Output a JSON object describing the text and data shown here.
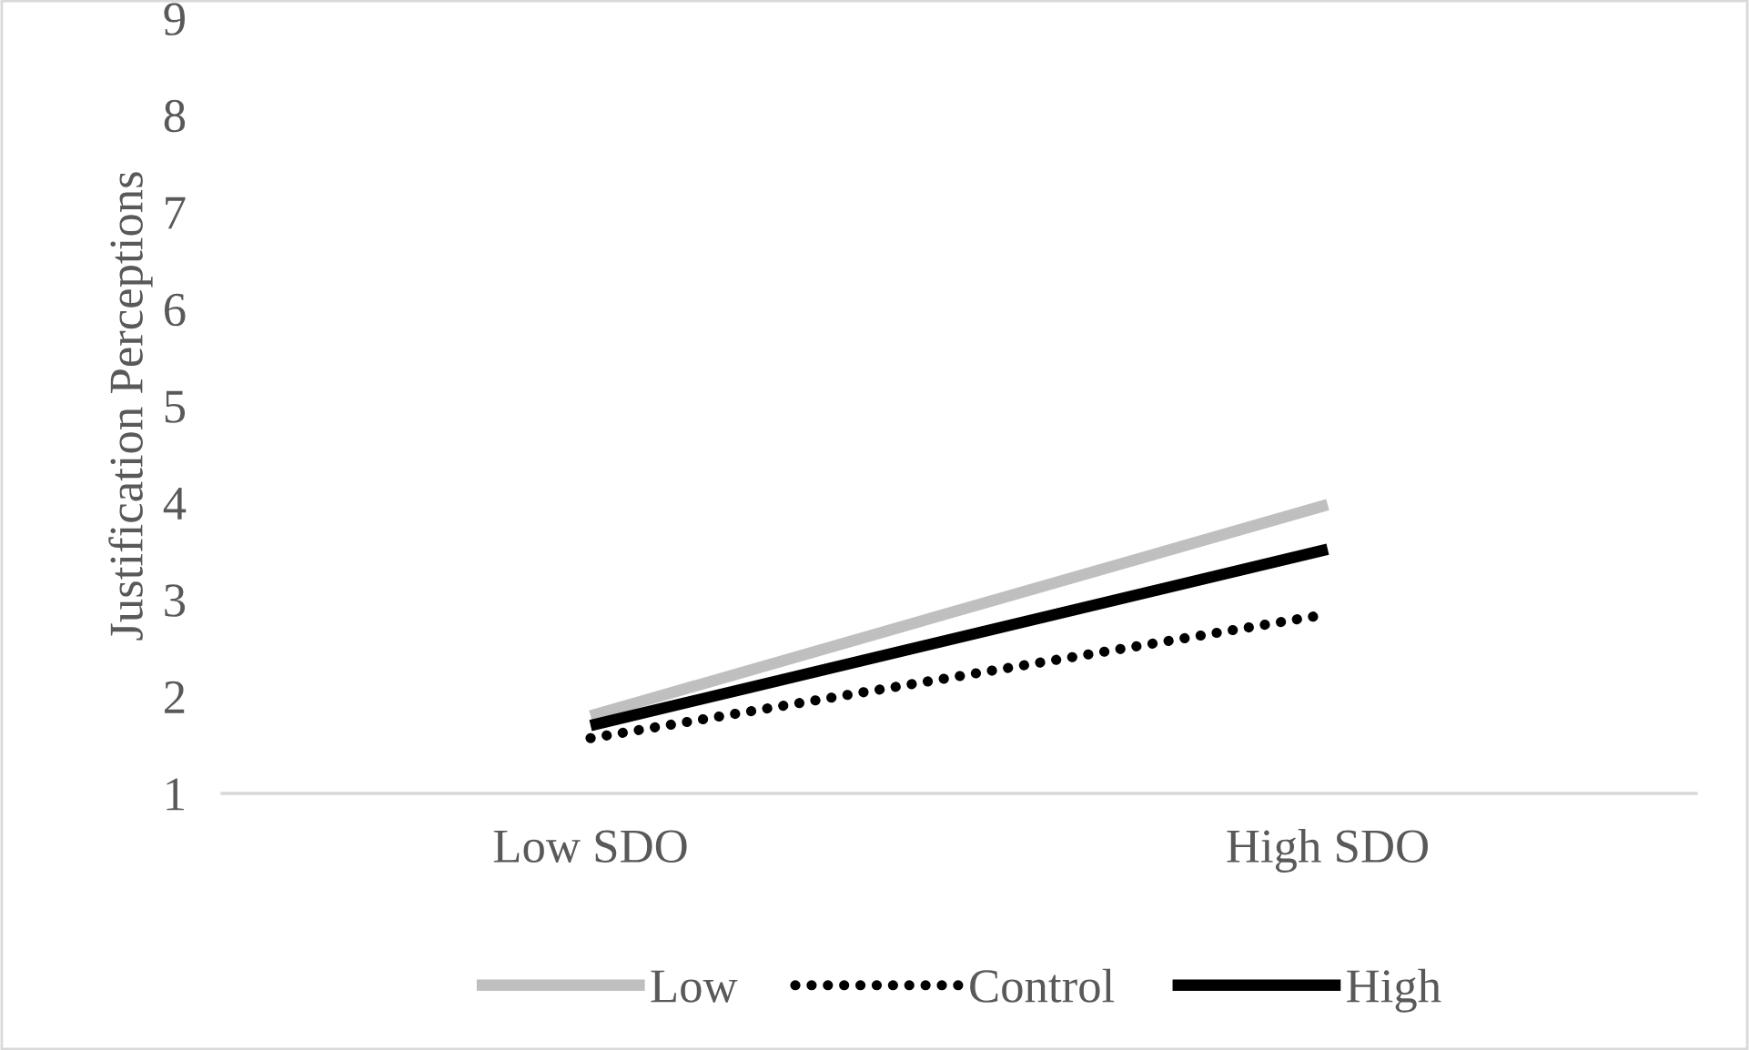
{
  "chart_data": {
    "type": "line",
    "ylabel": "Justification Perceptions",
    "categories": [
      "Low SDO",
      "High SDO"
    ],
    "series": [
      {
        "name": "Low",
        "color": "#bfbfbf",
        "values": [
          1.8,
          3.98
        ],
        "line_style": "solid"
      },
      {
        "name": "Control",
        "color": "#000000",
        "values": [
          1.57,
          2.85
        ],
        "line_style": "dotted"
      },
      {
        "name": "High",
        "color": "#000000",
        "values": [
          1.7,
          3.52
        ],
        "line_style": "solid"
      }
    ],
    "ylim": [
      1,
      9
    ],
    "yticks": [
      1,
      2,
      3,
      4,
      5,
      6,
      7,
      8,
      9
    ],
    "grid": false,
    "legend": "bottom",
    "marker": "none"
  }
}
